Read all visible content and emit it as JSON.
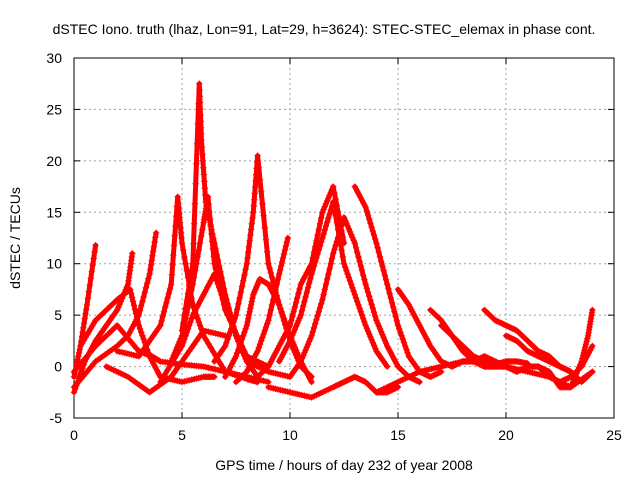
{
  "chart_data": {
    "type": "scatter",
    "title": "dSTEC Iono. truth (lhaz, Lon=91, Lat=29, h=3624): STEC-STEC_elemax in phase cont.",
    "xlabel": "GPS time / hours of day 232 of year 2008",
    "ylabel": "dSTEC  / TECUs",
    "xlim": [
      0,
      25
    ],
    "ylim": [
      -5,
      30
    ],
    "xticks": [
      0,
      5,
      10,
      15,
      20,
      25
    ],
    "yticks": [
      -5,
      0,
      5,
      10,
      15,
      20,
      25,
      30
    ],
    "grid": true,
    "marker": "+",
    "color": "#ff0000",
    "series": [
      {
        "x": [
          0.0,
          0.3,
          0.6,
          1.0
        ],
        "y": [
          -1.0,
          2.0,
          6.0,
          11.8
        ]
      },
      {
        "x": [
          0.0,
          0.5,
          1.0,
          1.5,
          2.0,
          2.5,
          2.7
        ],
        "y": [
          -2.5,
          0.5,
          2.5,
          4.0,
          5.5,
          8.0,
          11.0
        ]
      },
      {
        "x": [
          0.0,
          1.0,
          2.0,
          3.0,
          3.6,
          4.0,
          5.0,
          6.0,
          7.0,
          8.0,
          8.5
        ],
        "y": [
          -0.5,
          2.0,
          4.0,
          1.5,
          1.0,
          0.5,
          0.2,
          0.0,
          -0.5,
          -1.2,
          -1.5
        ]
      },
      {
        "x": [
          0.0,
          1.0,
          2.0,
          2.5,
          3.0,
          3.5,
          3.8
        ],
        "y": [
          -2.0,
          0.5,
          2.0,
          3.0,
          5.0,
          9.0,
          13.0
        ]
      },
      {
        "x": [
          0.3,
          1.0,
          2.0,
          2.6,
          3.0,
          3.5,
          4.0,
          5.0,
          6.0,
          6.5
        ],
        "y": [
          2.0,
          4.5,
          6.5,
          7.5,
          4.0,
          1.0,
          -1.0,
          -1.5,
          -1.0,
          -1.0
        ]
      },
      {
        "x": [
          1.5,
          2.5,
          3.5,
          4.5,
          5.0,
          6.0,
          7.0
        ],
        "y": [
          0.0,
          -1.0,
          -2.5,
          -1.0,
          0.5,
          3.5,
          3.0
        ]
      },
      {
        "x": [
          2.0,
          3.0,
          4.0,
          4.5,
          4.8,
          5.0,
          5.5,
          6.0,
          7.0,
          8.0,
          9.0
        ],
        "y": [
          1.5,
          1.0,
          4.0,
          8.0,
          16.5,
          12.0,
          6.0,
          3.0,
          -0.5,
          -1.0,
          -1.5
        ]
      },
      {
        "x": [
          5.0,
          5.5,
          5.8,
          5.9,
          6.1,
          6.5,
          7.0,
          7.5,
          8.0,
          9.0,
          10.0
        ],
        "y": [
          3.5,
          10.0,
          27.5,
          22.0,
          16.0,
          12.0,
          7.0,
          3.0,
          0.5,
          -0.5,
          -1.0
        ]
      },
      {
        "x": [
          4.5,
          5.0,
          5.5,
          6.0,
          6.2,
          6.5,
          7.0,
          8.0,
          9.0
        ],
        "y": [
          0.5,
          3.0,
          8.0,
          14.0,
          16.5,
          10.0,
          5.5,
          1.0,
          0.0
        ]
      },
      {
        "x": [
          4.0,
          5.0,
          5.5,
          6.0,
          6.5,
          7.0,
          7.5,
          8.0,
          8.5
        ],
        "y": [
          -1.5,
          2.0,
          5.0,
          7.0,
          9.0,
          6.0,
          3.0,
          0.5,
          -1.0
        ]
      },
      {
        "x": [
          6.5,
          7.0,
          7.5,
          8.0,
          8.3,
          8.5,
          9.0,
          9.5,
          10.0,
          10.5,
          11.0
        ],
        "y": [
          0.5,
          2.0,
          5.0,
          10.0,
          15.0,
          20.5,
          10.0,
          6.0,
          2.5,
          0.0,
          -1.0
        ]
      },
      {
        "x": [
          7.0,
          7.5,
          8.0,
          8.3,
          8.6,
          9.0,
          9.5,
          10.0,
          10.5,
          11.0
        ],
        "y": [
          -1.0,
          1.0,
          4.0,
          7.0,
          8.5,
          8.0,
          6.0,
          3.0,
          0.5,
          -1.5
        ]
      },
      {
        "x": [
          7.5,
          8.0,
          8.5,
          9.0,
          9.5,
          9.9
        ],
        "y": [
          -1.5,
          -0.5,
          1.5,
          4.5,
          9.0,
          12.5
        ]
      },
      {
        "x": [
          8.5,
          9.0,
          9.5,
          10.0,
          10.5,
          11.0,
          11.5,
          12.0,
          12.5
        ],
        "y": [
          -1.0,
          0.0,
          2.0,
          4.0,
          8.0,
          10.0,
          15.0,
          17.5,
          12.0
        ]
      },
      {
        "x": [
          9.5,
          10.0,
          10.5,
          11.0,
          11.5,
          12.0,
          12.5,
          13.0,
          13.5,
          14.0,
          14.5
        ],
        "y": [
          0.5,
          2.5,
          5.0,
          9.0,
          12.5,
          16.0,
          10.0,
          7.0,
          4.0,
          1.5,
          0.0
        ]
      },
      {
        "x": [
          10.0,
          10.5,
          11.0,
          11.5,
          12.0,
          12.5,
          13.0,
          13.5,
          14.0,
          14.5,
          15.0,
          15.5,
          16.0
        ],
        "y": [
          -1.0,
          0.5,
          3.0,
          6.5,
          11.0,
          14.5,
          12.0,
          8.0,
          4.5,
          2.0,
          0.0,
          -1.0,
          -1.5
        ]
      },
      {
        "x": [
          13.0,
          13.5,
          14.0,
          14.5,
          15.0,
          15.5,
          16.0,
          16.5,
          17.0
        ],
        "y": [
          17.5,
          15.5,
          12.0,
          8.0,
          4.0,
          1.0,
          -0.5,
          -1.0,
          -0.5
        ]
      },
      {
        "x": [
          9.0,
          10.0,
          11.0,
          12.0,
          12.5,
          13.0,
          13.5,
          14.0,
          14.5,
          15.0
        ],
        "y": [
          -2.0,
          -2.5,
          -3.0,
          -2.0,
          -1.5,
          -1.0,
          -1.5,
          -2.5,
          -2.5,
          -2.0
        ]
      },
      {
        "x": [
          15.0,
          15.5,
          16.0,
          16.5,
          17.0,
          17.5,
          18.0,
          18.5,
          19.0,
          19.5,
          20.0
        ],
        "y": [
          7.5,
          6.0,
          4.0,
          2.0,
          0.5,
          0.0,
          0.5,
          0.5,
          0.0,
          0.0,
          0.0
        ]
      },
      {
        "x": [
          16.5,
          17.0,
          17.5,
          18.0,
          18.5,
          19.0,
          19.5,
          20.0,
          20.5,
          21.0
        ],
        "y": [
          5.5,
          4.5,
          3.0,
          2.0,
          1.0,
          0.5,
          0.2,
          0.5,
          0.5,
          0.3
        ]
      },
      {
        "x": [
          17.0,
          17.5,
          18.0,
          18.5,
          19.0,
          19.5,
          20.0,
          20.5,
          21.0,
          21.5,
          22.0
        ],
        "y": [
          4.0,
          3.0,
          1.5,
          0.5,
          1.0,
          0.5,
          0.0,
          -0.5,
          0.0,
          0.0,
          -0.5
        ]
      },
      {
        "x": [
          19.0,
          19.5,
          20.0,
          20.5,
          21.0,
          21.5,
          22.0,
          22.5,
          23.0
        ],
        "y": [
          5.5,
          4.5,
          4.0,
          3.5,
          2.5,
          1.5,
          1.0,
          0.0,
          -0.5
        ]
      },
      {
        "x": [
          20.0,
          20.5,
          21.0,
          21.5,
          22.0,
          22.5,
          23.0,
          23.5,
          24.0
        ],
        "y": [
          3.0,
          2.5,
          1.5,
          1.0,
          0.5,
          0.0,
          -0.5,
          -1.5,
          -0.5
        ]
      },
      {
        "x": [
          14.0,
          15.0,
          16.0,
          17.0,
          18.0,
          19.0,
          20.0,
          21.0,
          22.0,
          23.0,
          24.0
        ],
        "y": [
          -2.5,
          -1.5,
          -0.5,
          0.0,
          0.5,
          0.5,
          0.0,
          -0.5,
          -1.0,
          -2.0,
          -0.5
        ]
      },
      {
        "x": [
          22.0,
          22.5,
          23.0,
          23.5,
          23.8,
          24.0
        ],
        "y": [
          -0.5,
          -2.0,
          -2.0,
          0.5,
          3.0,
          5.5
        ]
      },
      {
        "x": [
          21.5,
          22.0,
          22.5,
          23.0,
          23.5,
          24.0
        ],
        "y": [
          0.0,
          -1.0,
          -1.5,
          -1.0,
          0.0,
          2.0
        ]
      }
    ]
  }
}
